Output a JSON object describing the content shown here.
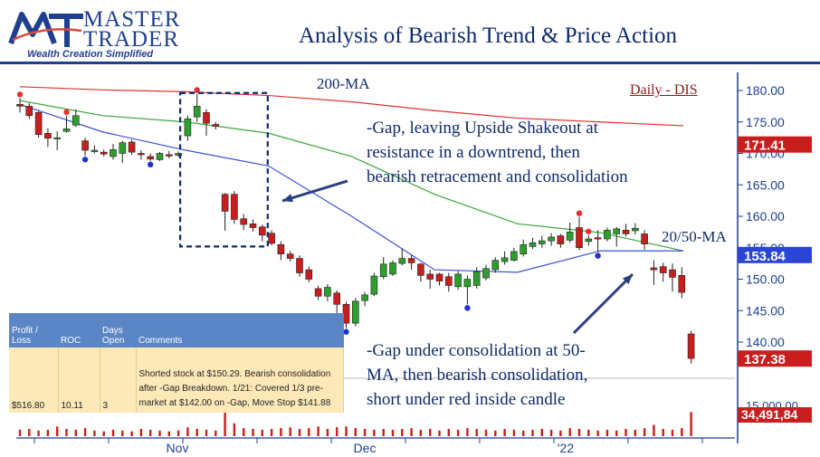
{
  "header": {
    "logo_mark": "MT",
    "brand_line1": "MASTER",
    "brand_line2": "TRADER",
    "tagline": "Wealth Creation Simplified",
    "title": "Analysis of Bearish Trend & Price Action"
  },
  "colors": {
    "brand_blue": "#1f3f8f",
    "up_candle": "#2e9e2e",
    "down_candle": "#c81e1e",
    "ma200": "#e03030",
    "ma50": "#3aa63a",
    "ma20": "#3b4fd6",
    "annotation_blue": "#0f2a6b"
  },
  "annotations": {
    "ma200_label": "200-MA",
    "ma2050_label": "20/50-MA",
    "symbol_label": "Daily - DIS",
    "gap_note_1": "-Gap, leaving Upside Shakeout at",
    "gap_note_2": "resistance in a downtrend, then",
    "gap_note_3": "bearish retracement and consolidation",
    "cons_note_1": "-Gap under consolidation at 50-",
    "cons_note_2": "MA,  then bearish consolidation,",
    "cons_note_3": "short under red inside candle"
  },
  "trade_table": {
    "headers": [
      "Profit / Loss",
      "ROC",
      "Days Open",
      "Comments"
    ],
    "row": [
      "$516.80",
      "10.11",
      "3",
      "Shorted stock at $150.29.  Bearish consolidation after -Gap Breakdown.  1/21:  Covered 1/3 pre-market at $142.00 on -Gap, Move Stop $141.88"
    ]
  },
  "chart_data": {
    "type": "candlestick",
    "title": "Daily - DIS",
    "ylim": [
      133,
      182
    ],
    "y_ticks": [
      "180.00",
      "175.00",
      "170.00",
      "165.00",
      "160.00",
      "155.00",
      "150.00",
      "145.00",
      "140.00"
    ],
    "x_tick_labels": [
      "Nov",
      "Dec",
      "'22"
    ],
    "price_badges": [
      {
        "label": "171.41",
        "value": 171.41,
        "color": "#c81e1e"
      },
      {
        "label": "153.84",
        "value": 153.84,
        "color": "#2a44d8"
      },
      {
        "label": "137.38",
        "value": 137.38,
        "color": "#c81e1e"
      }
    ],
    "volume_badge": {
      "label": "34,491,84",
      "color": "#c81e1e"
    },
    "volume_tick_label": "15,000,00",
    "candles": [
      {
        "o": 177.8,
        "c": 177.5,
        "h": 178.8,
        "l": 176.5
      },
      {
        "o": 177.5,
        "c": 176.0,
        "h": 178.0,
        "l": 175.5
      },
      {
        "o": 176.5,
        "c": 173.0,
        "h": 176.8,
        "l": 172.5
      },
      {
        "o": 173.2,
        "c": 172.4,
        "h": 174.0,
        "l": 171.0
      },
      {
        "o": 172.5,
        "c": 172.5,
        "h": 173.5,
        "l": 170.5
      },
      {
        "o": 173.5,
        "c": 173.9,
        "h": 176.0,
        "l": 173.3
      },
      {
        "o": 174.5,
        "c": 176.0,
        "h": 177.0,
        "l": 174.2
      },
      {
        "o": 172.0,
        "c": 170.5,
        "h": 172.5,
        "l": 169.6
      },
      {
        "o": 170.5,
        "c": 170.5,
        "h": 171.3,
        "l": 170.0
      },
      {
        "o": 170.2,
        "c": 169.9,
        "h": 170.6,
        "l": 169.5
      },
      {
        "o": 169.5,
        "c": 170.6,
        "h": 171.5,
        "l": 169.0
      },
      {
        "o": 170.0,
        "c": 171.7,
        "h": 172.0,
        "l": 168.5
      },
      {
        "o": 171.8,
        "c": 170.2,
        "h": 172.2,
        "l": 169.8
      },
      {
        "o": 170.0,
        "c": 169.8,
        "h": 170.5,
        "l": 169.0
      },
      {
        "o": 169.5,
        "c": 169.1,
        "h": 170.0,
        "l": 168.8
      },
      {
        "o": 169.0,
        "c": 170.0,
        "h": 170.2,
        "l": 168.8
      },
      {
        "o": 169.8,
        "c": 169.6,
        "h": 170.4,
        "l": 169.2
      },
      {
        "o": 169.7,
        "c": 170.0,
        "h": 170.3,
        "l": 169.4
      },
      {
        "o": 172.8,
        "c": 175.5,
        "h": 176.0,
        "l": 172.0
      },
      {
        "o": 175.8,
        "c": 177.5,
        "h": 179.5,
        "l": 175.0
      },
      {
        "o": 176.5,
        "c": 174.8,
        "h": 177.0,
        "l": 172.8
      },
      {
        "o": 174.6,
        "c": 174.3,
        "h": 175.0,
        "l": 173.8
      },
      {
        "o": 163.5,
        "c": 160.8,
        "h": 163.7,
        "l": 157.7
      },
      {
        "o": 163.5,
        "c": 159.5,
        "h": 164.0,
        "l": 158.8
      },
      {
        "o": 159.6,
        "c": 158.7,
        "h": 160.4,
        "l": 157.8
      },
      {
        "o": 158.8,
        "c": 158.2,
        "h": 159.5,
        "l": 157.6
      },
      {
        "o": 158.3,
        "c": 157.0,
        "h": 158.7,
        "l": 156.0
      },
      {
        "o": 157.3,
        "c": 155.7,
        "h": 157.8,
        "l": 155.4
      },
      {
        "o": 155.5,
        "c": 154.0,
        "h": 156.0,
        "l": 153.0
      },
      {
        "o": 154.0,
        "c": 153.3,
        "h": 154.5,
        "l": 152.8
      },
      {
        "o": 153.3,
        "c": 151.0,
        "h": 153.8,
        "l": 150.4
      },
      {
        "o": 151.5,
        "c": 150.0,
        "h": 152.0,
        "l": 149.5
      },
      {
        "o": 148.5,
        "c": 147.3,
        "h": 149.0,
        "l": 146.7
      },
      {
        "o": 147.3,
        "c": 148.7,
        "h": 149.2,
        "l": 146.5
      },
      {
        "o": 147.8,
        "c": 146.0,
        "h": 148.2,
        "l": 144.0
      },
      {
        "o": 146.0,
        "c": 143.0,
        "h": 146.4,
        "l": 142.2
      },
      {
        "o": 143.0,
        "c": 146.5,
        "h": 147.0,
        "l": 142.5
      },
      {
        "o": 146.6,
        "c": 147.5,
        "h": 148.0,
        "l": 145.7
      },
      {
        "o": 147.6,
        "c": 150.5,
        "h": 151.0,
        "l": 147.3
      },
      {
        "o": 150.4,
        "c": 152.4,
        "h": 153.5,
        "l": 150.0
      },
      {
        "o": 150.8,
        "c": 152.6,
        "h": 153.0,
        "l": 150.5
      },
      {
        "o": 152.5,
        "c": 153.3,
        "h": 154.9,
        "l": 152.2
      },
      {
        "o": 153.3,
        "c": 152.6,
        "h": 153.8,
        "l": 151.5
      },
      {
        "o": 152.4,
        "c": 150.6,
        "h": 152.6,
        "l": 149.6
      },
      {
        "o": 150.8,
        "c": 150.0,
        "h": 151.5,
        "l": 148.5
      },
      {
        "o": 150.8,
        "c": 149.7,
        "h": 151.0,
        "l": 149.0
      },
      {
        "o": 150.4,
        "c": 149.0,
        "h": 151.0,
        "l": 148.0
      },
      {
        "o": 148.8,
        "c": 150.8,
        "h": 151.3,
        "l": 148.3
      },
      {
        "o": 148.8,
        "c": 150.0,
        "h": 150.6,
        "l": 146.0
      },
      {
        "o": 149.0,
        "c": 151.2,
        "h": 151.9,
        "l": 148.5
      },
      {
        "o": 150.2,
        "c": 151.7,
        "h": 152.3,
        "l": 149.8
      },
      {
        "o": 151.5,
        "c": 153.0,
        "h": 153.5,
        "l": 151.0
      },
      {
        "o": 152.8,
        "c": 153.4,
        "h": 154.4,
        "l": 152.3
      },
      {
        "o": 153.0,
        "c": 154.4,
        "h": 155.0,
        "l": 152.8
      },
      {
        "o": 154.0,
        "c": 155.5,
        "h": 156.3,
        "l": 153.6
      },
      {
        "o": 155.2,
        "c": 155.8,
        "h": 156.6,
        "l": 154.8
      },
      {
        "o": 155.6,
        "c": 156.1,
        "h": 156.9,
        "l": 155.0
      },
      {
        "o": 156.1,
        "c": 156.7,
        "h": 157.3,
        "l": 155.3
      },
      {
        "o": 156.9,
        "c": 155.6,
        "h": 157.2,
        "l": 155.0
      },
      {
        "o": 156.2,
        "c": 157.5,
        "h": 159.0,
        "l": 155.8
      },
      {
        "o": 158.2,
        "c": 155.0,
        "h": 159.9,
        "l": 154.6
      },
      {
        "o": 156.0,
        "c": 156.4,
        "h": 157.0,
        "l": 155.3
      },
      {
        "o": 156.6,
        "c": 156.4,
        "h": 157.8,
        "l": 154.3
      },
      {
        "o": 156.4,
        "c": 157.8,
        "h": 158.2,
        "l": 156.0
      },
      {
        "o": 157.2,
        "c": 158.0,
        "h": 158.3,
        "l": 155.2
      },
      {
        "o": 157.8,
        "c": 157.2,
        "h": 158.8,
        "l": 156.8
      },
      {
        "o": 157.7,
        "c": 158.1,
        "h": 158.9,
        "l": 157.1
      },
      {
        "o": 157.2,
        "c": 155.6,
        "h": 157.8,
        "l": 154.7
      },
      {
        "o": 151.8,
        "c": 151.5,
        "h": 153.0,
        "l": 149.1
      },
      {
        "o": 152.0,
        "c": 151.0,
        "h": 152.6,
        "l": 149.6
      },
      {
        "o": 151.5,
        "c": 150.3,
        "h": 152.5,
        "l": 148.0
      },
      {
        "o": 150.6,
        "c": 147.9,
        "h": 151.9,
        "l": 147.0
      },
      {
        "o": 141.3,
        "c": 137.4,
        "h": 141.8,
        "l": 136.6
      }
    ],
    "highs_marked": [
      0,
      5,
      19,
      60,
      61
    ],
    "lows_marked": [
      7,
      14,
      35,
      48,
      62
    ],
    "ma200": [
      180.6,
      180.1,
      179.8,
      179.2,
      178.2,
      176.8,
      175.6,
      175.0,
      174.4
    ],
    "ma50": [
      178.4,
      176.0,
      175.0,
      173.2,
      169.5,
      163.5,
      158.8,
      157.4,
      154.5
    ],
    "ma20": [
      177.8,
      173.4,
      170.5,
      168.0,
      160.0,
      151.5,
      151.1,
      154.5,
      154.5
    ],
    "volume": [
      8,
      9,
      7,
      8,
      12,
      9,
      8,
      10,
      7,
      6,
      8,
      7,
      6,
      9,
      8,
      7,
      6,
      7,
      11,
      9,
      8,
      7,
      34,
      16,
      10,
      9,
      8,
      9,
      10,
      11,
      9,
      10,
      12,
      9,
      11,
      12,
      10,
      9,
      8,
      9,
      8,
      9,
      10,
      8,
      9,
      7,
      9,
      8,
      10,
      9,
      8,
      7,
      9,
      8,
      7,
      8,
      9,
      8,
      7,
      10,
      9,
      8,
      7,
      8,
      7,
      9,
      8,
      10,
      14,
      9,
      8,
      10,
      30
    ]
  }
}
